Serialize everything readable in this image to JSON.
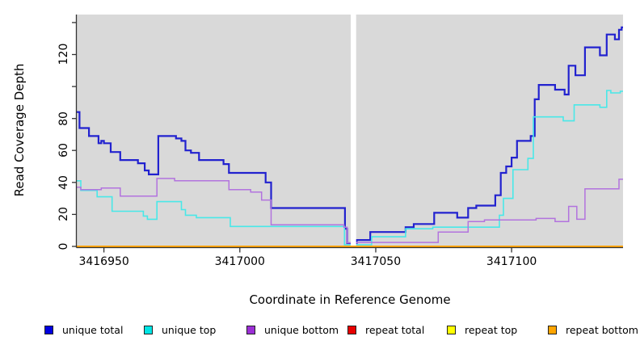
{
  "figure": {
    "xlabel": "Coordinate in Reference Genome",
    "ylabel": "Read Coverage Depth"
  },
  "chart_data": {
    "type": "line",
    "step": true,
    "title": "",
    "xlabel": "Coordinate in Reference Genome",
    "ylabel": "Read Coverage Depth",
    "xlim": [
      3416940,
      3417141
    ],
    "ylim": [
      0,
      145
    ],
    "grid": false,
    "plot_bg": "#d9d9d9",
    "axis_color": "#333333",
    "gap_band": {
      "x0": 3417040.8,
      "x1": 3417042.8,
      "color": "#ffffff"
    },
    "x_ticks": [
      3416950,
      3417000,
      3417050,
      3417100
    ],
    "x_tick_labels": [
      "3416950",
      "3417000",
      "3417050",
      "3417100"
    ],
    "y_ticks": [
      0,
      20,
      40,
      60,
      80,
      100,
      120,
      140
    ],
    "y_tick_labels": [
      "0",
      "20",
      "40",
      "60",
      "80",
      "",
      "120",
      ""
    ],
    "legend_position": "bottom",
    "series": [
      {
        "name": "unique total",
        "line_color": "#2222cf",
        "legend_color": "#0000e0",
        "width": 2.2,
        "points": [
          [
            3416940,
            84
          ],
          [
            3416941,
            74
          ],
          [
            3416944.5,
            69
          ],
          [
            3416948,
            64.5
          ],
          [
            3416949,
            66
          ],
          [
            3416950,
            64.5
          ],
          [
            3416952.5,
            59
          ],
          [
            3416956,
            54
          ],
          [
            3416962.5,
            52
          ],
          [
            3416965,
            47.5
          ],
          [
            3416966.5,
            45
          ],
          [
            3416970,
            69
          ],
          [
            3416976.5,
            67.5
          ],
          [
            3416978.5,
            66
          ],
          [
            3416980,
            60
          ],
          [
            3416982,
            58.5
          ],
          [
            3416985,
            54
          ],
          [
            3416994,
            51.5
          ],
          [
            3416996,
            46
          ],
          [
            3417009.5,
            40
          ],
          [
            3417011.5,
            24
          ],
          [
            3417038.7,
            11
          ],
          [
            3417039.5,
            2
          ],
          [
            3417043,
            4
          ],
          [
            3417048,
            9
          ],
          [
            3417061,
            12
          ],
          [
            3417064,
            14
          ],
          [
            3417071.5,
            21
          ],
          [
            3417080,
            18
          ],
          [
            3417084,
            24
          ],
          [
            3417087,
            25.5
          ],
          [
            3417094,
            32
          ],
          [
            3417096,
            46
          ],
          [
            3417098,
            50
          ],
          [
            3417100,
            55.5
          ],
          [
            3417102,
            66
          ],
          [
            3417107,
            69
          ],
          [
            3417108.5,
            92
          ],
          [
            3417110,
            101
          ],
          [
            3417116,
            98
          ],
          [
            3417119.5,
            95
          ],
          [
            3417121,
            113
          ],
          [
            3417123.5,
            107
          ],
          [
            3417127,
            124.5
          ],
          [
            3417132.5,
            119.5
          ],
          [
            3417135,
            132.5
          ],
          [
            3417138,
            129.5
          ],
          [
            3417139.5,
            135.5
          ],
          [
            3417140.5,
            137
          ]
        ]
      },
      {
        "name": "unique top",
        "line_color": "#49e8e8",
        "legend_color": "#00e5e5",
        "width": 1.6,
        "points": [
          [
            3416940,
            41
          ],
          [
            3416941.5,
            35
          ],
          [
            3416947.5,
            31
          ],
          [
            3416953,
            22
          ],
          [
            3416964.5,
            19
          ],
          [
            3416966,
            17
          ],
          [
            3416969.5,
            28
          ],
          [
            3416978.5,
            23
          ],
          [
            3416980,
            19.5
          ],
          [
            3416984,
            18
          ],
          [
            3416996.5,
            12.5
          ],
          [
            3417038.5,
            1
          ],
          [
            3417048.5,
            6
          ],
          [
            3417061,
            11
          ],
          [
            3417071,
            12
          ],
          [
            3417095.5,
            19.5
          ],
          [
            3417097,
            30
          ],
          [
            3417100.5,
            48
          ],
          [
            3417106,
            55
          ],
          [
            3417108,
            81
          ],
          [
            3417119,
            78.5
          ],
          [
            3417123,
            88.5
          ],
          [
            3417132.5,
            87
          ],
          [
            3417135,
            97.5
          ],
          [
            3417136.5,
            96
          ],
          [
            3417140,
            97
          ]
        ]
      },
      {
        "name": "unique bottom",
        "line_color": "#b273de",
        "legend_color": "#9c2fd6",
        "width": 1.5,
        "points": [
          [
            3416940,
            37
          ],
          [
            3416941.5,
            35.5
          ],
          [
            3416949,
            36.5
          ],
          [
            3416956,
            31.5
          ],
          [
            3416969.5,
            42.5
          ],
          [
            3416976,
            41
          ],
          [
            3416996,
            35.5
          ],
          [
            3417004,
            34
          ],
          [
            3417008,
            29
          ],
          [
            3417011.5,
            13.5
          ],
          [
            3417038.3,
            12
          ],
          [
            3417039.5,
            2.2
          ],
          [
            3417043,
            2.5
          ],
          [
            3417073,
            9
          ],
          [
            3417084,
            15.5
          ],
          [
            3417090,
            16.5
          ],
          [
            3417109,
            17.5
          ],
          [
            3417116,
            15.5
          ],
          [
            3417121,
            25
          ],
          [
            3417124,
            17
          ],
          [
            3417127,
            36
          ],
          [
            3417139.5,
            42
          ]
        ]
      },
      {
        "name": "repeat total",
        "line_color": "#e80000",
        "legend_color": "#e80000",
        "width": 1.5,
        "points": [
          [
            3416940,
            0
          ]
        ]
      },
      {
        "name": "repeat top",
        "line_color": "#ffff00",
        "legend_color": "#ffff00",
        "width": 1.5,
        "points": [
          [
            3416940,
            0
          ]
        ]
      },
      {
        "name": "repeat bottom",
        "line_color": "#ffa500",
        "legend_color": "#ffa500",
        "width": 2,
        "points": [
          [
            3416940,
            0
          ]
        ]
      }
    ]
  }
}
